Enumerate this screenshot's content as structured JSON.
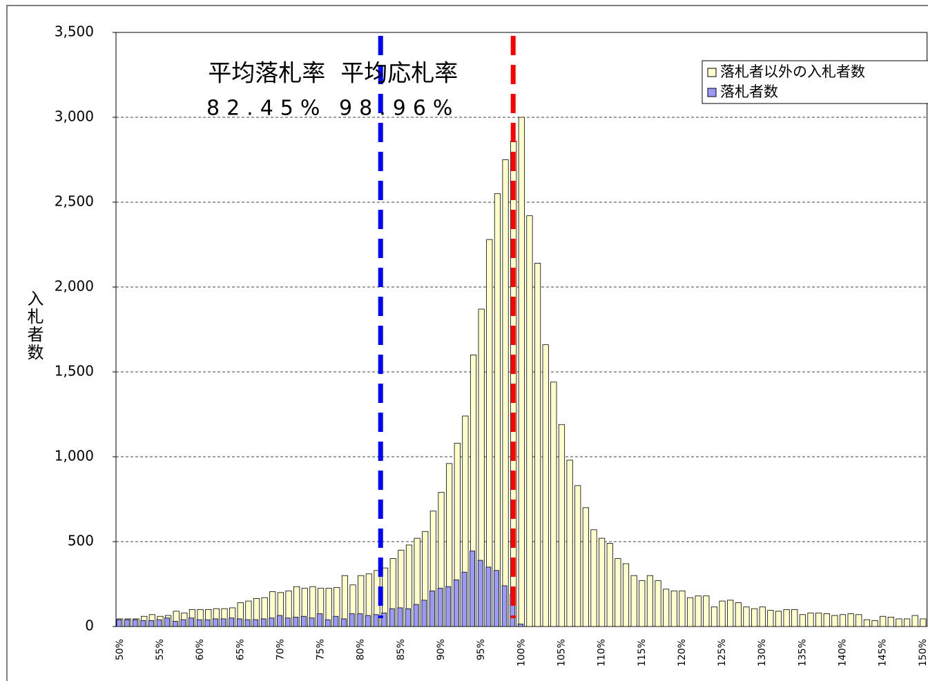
{
  "chart_data": {
    "type": "bar",
    "y_label": "入札者数",
    "categories": [
      "50%",
      null,
      null,
      null,
      null,
      "55%",
      null,
      null,
      null,
      null,
      "60%",
      null,
      null,
      null,
      null,
      "65%",
      null,
      null,
      null,
      null,
      "70%",
      null,
      null,
      null,
      null,
      "75%",
      null,
      null,
      null,
      null,
      "80%",
      null,
      null,
      null,
      null,
      "85%",
      null,
      null,
      null,
      null,
      "90%",
      null,
      null,
      null,
      null,
      "95%",
      null,
      null,
      null,
      null,
      "100%",
      null,
      null,
      null,
      null,
      "105%",
      null,
      null,
      null,
      null,
      "110%",
      null,
      null,
      null,
      null,
      "115%",
      null,
      null,
      null,
      null,
      "120%",
      null,
      null,
      null,
      null,
      "125%",
      null,
      null,
      null,
      null,
      "130%",
      null,
      null,
      null,
      null,
      "135%",
      null,
      null,
      null,
      null,
      "140%",
      null,
      null,
      null,
      null,
      "145%",
      null,
      null,
      null,
      null,
      "150%"
    ],
    "series": [
      {
        "name": "落札者以外の入札者数",
        "color": "#ffffcc",
        "values": [
          45,
          45,
          45,
          60,
          70,
          60,
          65,
          90,
          80,
          100,
          100,
          100,
          105,
          105,
          110,
          140,
          150,
          165,
          170,
          205,
          200,
          210,
          235,
          225,
          235,
          225,
          225,
          230,
          300,
          245,
          300,
          310,
          330,
          345,
          400,
          450,
          480,
          520,
          560,
          680,
          790,
          960,
          1080,
          1240,
          1600,
          1870,
          2280,
          2550,
          2750,
          2860,
          3000,
          2420,
          2140,
          1660,
          1440,
          1190,
          980,
          830,
          700,
          570,
          520,
          490,
          400,
          370,
          300,
          270,
          300,
          270,
          220,
          210,
          210,
          170,
          180,
          180,
          115,
          150,
          155,
          140,
          115,
          105,
          115,
          95,
          90,
          100,
          100,
          70,
          80,
          80,
          75,
          65,
          70,
          75,
          70,
          40,
          35,
          60,
          55,
          45,
          45,
          65,
          45
        ]
      },
      {
        "name": "落札者数",
        "color": "#9999ff",
        "values": [
          40,
          40,
          40,
          35,
          35,
          40,
          50,
          30,
          40,
          50,
          40,
          40,
          45,
          45,
          50,
          45,
          40,
          40,
          45,
          50,
          65,
          50,
          55,
          60,
          50,
          75,
          40,
          60,
          45,
          75,
          75,
          65,
          70,
          80,
          105,
          110,
          105,
          130,
          155,
          210,
          225,
          235,
          275,
          320,
          445,
          390,
          350,
          330,
          240,
          190,
          15,
          0,
          0,
          0,
          0,
          0,
          0,
          0,
          0,
          0,
          0,
          0,
          0,
          0,
          0,
          0,
          0,
          0,
          0,
          0,
          0,
          0,
          0,
          0,
          0,
          0,
          0,
          0,
          0,
          0,
          0,
          0,
          0,
          0,
          0,
          0,
          0,
          0,
          0,
          0,
          0,
          0,
          0,
          0,
          0,
          0,
          0,
          0,
          0,
          0,
          0
        ]
      }
    ],
    "ylim": [
      0,
      3500
    ],
    "yticks": [
      0,
      500,
      {
        "value": 1000,
        "label": "1,000"
      },
      {
        "value": 1500,
        "label": "1,500"
      },
      {
        "value": 2000,
        "label": "2,000"
      },
      {
        "value": 2500,
        "label": "2,500"
      },
      {
        "value": 3000,
        "label": "3,000"
      },
      {
        "value": 3500,
        "label": "3,500"
      }
    ],
    "grid": true,
    "legend_position": "top-right",
    "reference_lines": [
      {
        "name": "平均落札率",
        "value": 82.45,
        "value_label": "82.45%",
        "color": "#0000ff"
      },
      {
        "name": "平均応札率",
        "value": 98.96,
        "value_label": "98.96%",
        "color": "#ff0000"
      }
    ],
    "x_start": 50
  }
}
